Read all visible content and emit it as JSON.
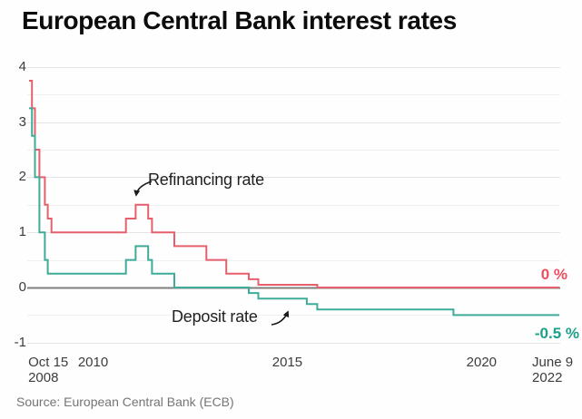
{
  "chart_data": {
    "type": "line",
    "subtype": "step",
    "title": "European Central Bank interest rates",
    "source": "Source: European Central Bank (ECB)",
    "grid": true,
    "legend_position": "inline-annotations",
    "x_axis": {
      "domain_dates": [
        "2008-10-15",
        "2022-06-09"
      ],
      "ticks": [
        {
          "lines": "Oct 15\n2008",
          "year": 2008.79
        },
        {
          "lines": "2010",
          "year": 2010.0
        },
        {
          "lines": "2015",
          "year": 2015.0
        },
        {
          "lines": "2020",
          "year": 2020.0
        },
        {
          "lines": "June 9\n2022",
          "year": 2022.44
        }
      ]
    },
    "y_axis": {
      "domain": [
        -1,
        4
      ],
      "ticks": [
        4,
        3,
        2,
        1,
        0,
        -1
      ],
      "minor_step": 0.5,
      "unit": "%"
    },
    "series": [
      {
        "name": "Refinancing rate",
        "color": "#e5606c",
        "end_label": "0 %",
        "end_label_color": "#ee4e5e",
        "points": [
          [
            "2008-10-15",
            3.75
          ],
          [
            "2008-11-12",
            3.25
          ],
          [
            "2008-12-10",
            2.5
          ],
          [
            "2009-01-21",
            2.0
          ],
          [
            "2009-03-11",
            1.5
          ],
          [
            "2009-04-08",
            1.25
          ],
          [
            "2009-05-13",
            1.0
          ],
          [
            "2011-04-13",
            1.25
          ],
          [
            "2011-07-13",
            1.5
          ],
          [
            "2011-11-09",
            1.25
          ],
          [
            "2011-12-14",
            1.0
          ],
          [
            "2012-07-11",
            0.75
          ],
          [
            "2013-05-08",
            0.5
          ],
          [
            "2013-11-13",
            0.25
          ],
          [
            "2014-06-11",
            0.15
          ],
          [
            "2014-09-10",
            0.05
          ],
          [
            "2016-03-16",
            0.0
          ]
        ]
      },
      {
        "name": "Deposit rate",
        "color": "#3fab99",
        "end_label": "-0.5 %",
        "end_label_color": "#1da08a",
        "points": [
          [
            "2008-10-15",
            3.25
          ],
          [
            "2008-11-12",
            2.75
          ],
          [
            "2008-12-10",
            2.0
          ],
          [
            "2009-01-21",
            1.0
          ],
          [
            "2009-03-11",
            0.5
          ],
          [
            "2009-04-08",
            0.25
          ],
          [
            "2011-04-13",
            0.5
          ],
          [
            "2011-07-13",
            0.75
          ],
          [
            "2011-11-09",
            0.5
          ],
          [
            "2011-12-14",
            0.25
          ],
          [
            "2012-07-11",
            0.0
          ],
          [
            "2014-06-11",
            -0.1
          ],
          [
            "2014-09-10",
            -0.2
          ],
          [
            "2015-12-09",
            -0.3
          ],
          [
            "2016-03-16",
            -0.4
          ],
          [
            "2019-09-18",
            -0.5
          ]
        ]
      }
    ],
    "annotations": [
      {
        "text": "Refinancing rate",
        "points_to": "refinancing 1.5 % peak, July 2011"
      },
      {
        "text": "Deposit rate",
        "points_to": "deposit rate negative segment, 2014-2015"
      }
    ],
    "colors": {
      "gridline_major": "#e4e4e4",
      "gridline_minor": "#f0f0f0",
      "zero_line": "#7d7d7d",
      "arrow": "#1a1a1a",
      "tick_text": "#3c3c3c",
      "title_text": "#0c0c0c",
      "source_text": "#757575"
    }
  }
}
